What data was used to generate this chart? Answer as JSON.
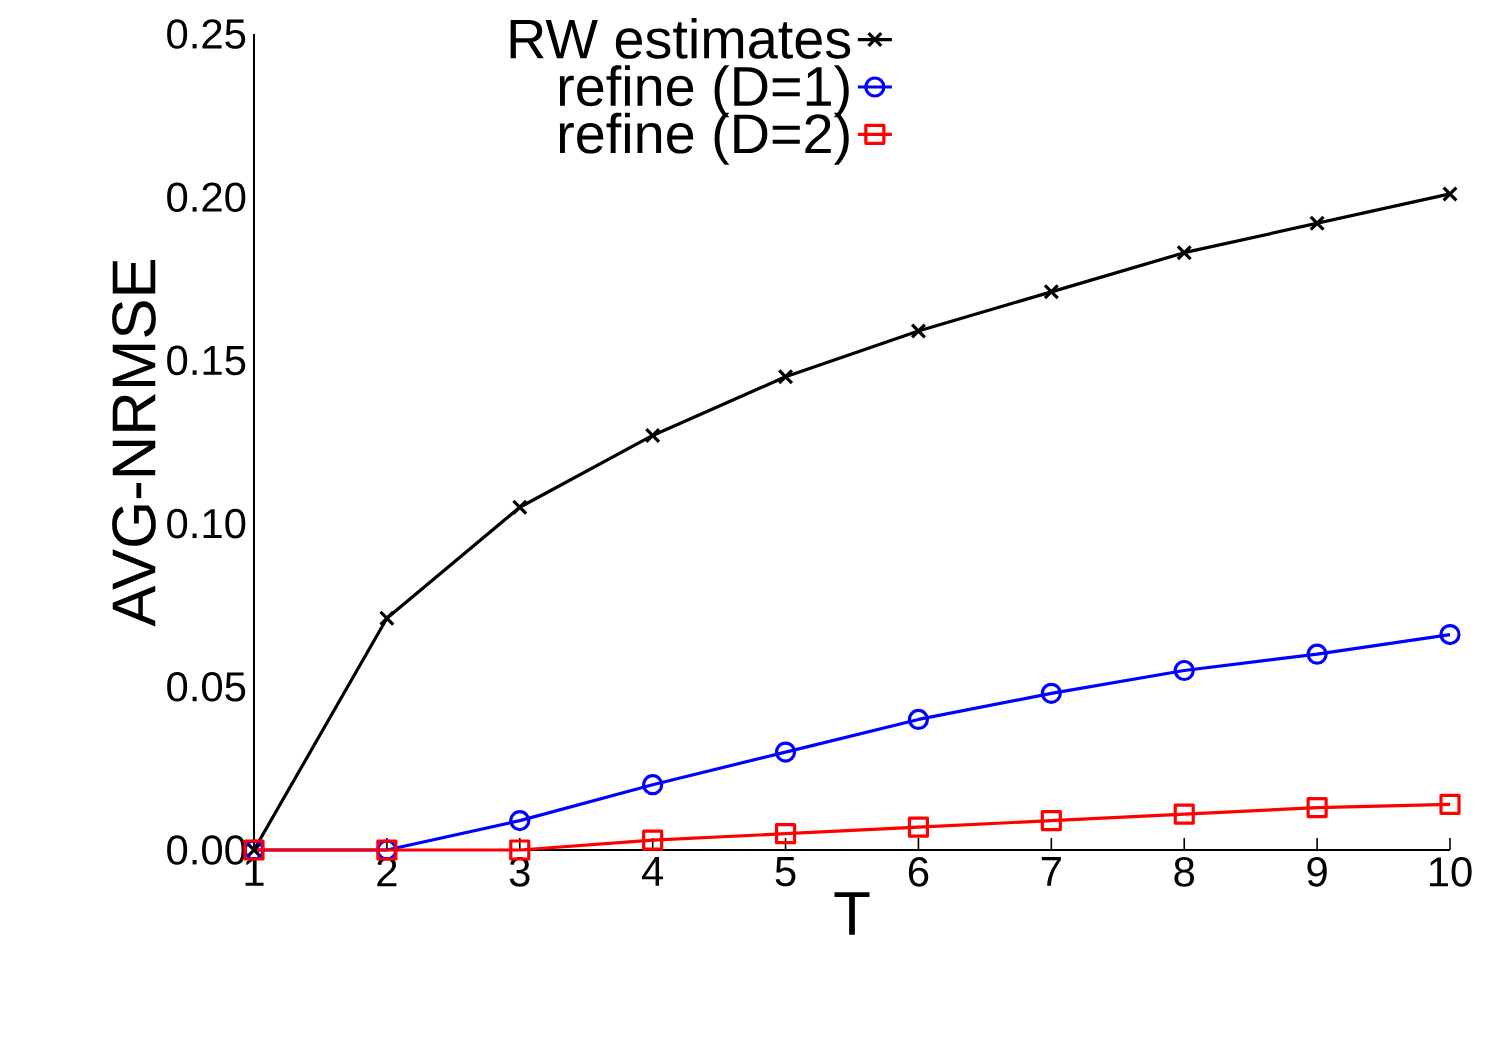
{
  "chart_data": {
    "type": "line",
    "xlabel": "T",
    "ylabel": "AVG-NRMSE",
    "x": [
      1,
      2,
      3,
      4,
      5,
      6,
      7,
      8,
      9,
      10
    ],
    "series": [
      {
        "name": "RW estimates",
        "color": "#000000",
        "marker": "cross",
        "values": [
          0,
          0.071,
          0.105,
          0.127,
          0.145,
          0.159,
          0.171,
          0.183,
          0.192,
          0.201
        ]
      },
      {
        "name": "refine (D=1)",
        "color": "#0000ff",
        "marker": "circle",
        "values": [
          0,
          0,
          0.009,
          0.02,
          0.03,
          0.04,
          0.048,
          0.055,
          0.06,
          0.066
        ]
      },
      {
        "name": "refine (D=2)",
        "color": "#ff0000",
        "marker": "square",
        "values": [
          0,
          0,
          0,
          0.003,
          0.005,
          0.007,
          0.009,
          0.011,
          0.013,
          0.014
        ]
      }
    ],
    "xlim": [
      1,
      10
    ],
    "xticks": [
      1,
      2,
      3,
      4,
      5,
      6,
      7,
      8,
      9,
      10
    ],
    "ylim": [
      0,
      0.25
    ],
    "yticks": [
      {
        "value": 0,
        "label": "0.00"
      },
      {
        "value": 0.05,
        "label": "0.05"
      },
      {
        "value": 0.1,
        "label": "0.10"
      },
      {
        "value": 0.15,
        "label": "0.15"
      },
      {
        "value": 0.2,
        "label": "0.20"
      },
      {
        "value": 0.25,
        "label": "0.25"
      }
    ],
    "legend": "top left",
    "grid": false,
    "line_style": "solid"
  }
}
